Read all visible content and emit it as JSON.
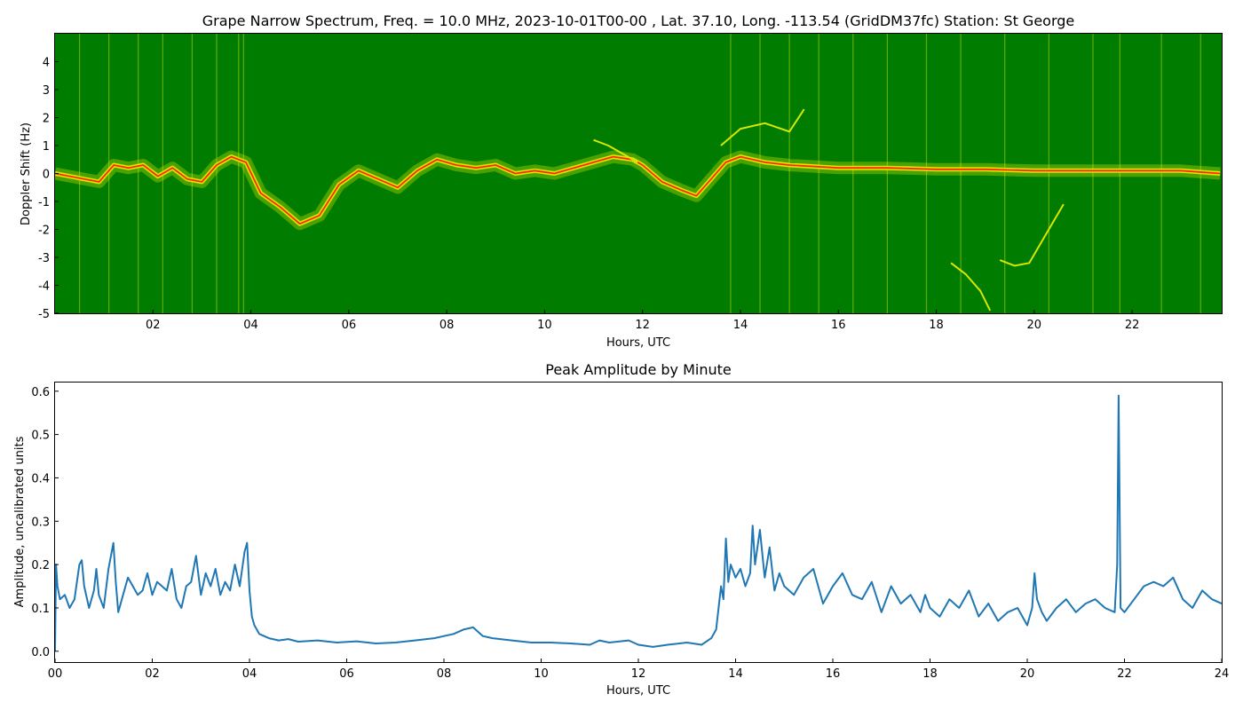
{
  "chart_data": [
    {
      "type": "heatmap",
      "title": "Grape Narrow Spectrum, Freq. = 10.0 MHz, 2023-10-01T00-00 , Lat.  37.10, Long. -113.54 (GridDM37fc) Station: St George",
      "xlabel": "Hours, UTC",
      "ylabel": "Doppler Shift (Hz)",
      "xlim": [
        0,
        23.83
      ],
      "ylim": [
        -5,
        5
      ],
      "x_ticks": [
        2,
        4,
        6,
        8,
        10,
        12,
        14,
        16,
        18,
        20,
        22
      ],
      "x_tick_labels": [
        "02",
        "04",
        "06",
        "08",
        "10",
        "12",
        "14",
        "16",
        "18",
        "20",
        "22"
      ],
      "y_ticks": [
        -5,
        -4,
        -3,
        -2,
        -1,
        0,
        1,
        2,
        3,
        4
      ],
      "y_tick_labels": [
        "-5",
        "-4",
        "-3",
        "-2",
        "-1",
        "0",
        "1",
        "2",
        "3",
        "4"
      ],
      "colors": {
        "background": "#007c00",
        "mid": "#d8e800",
        "peak": "#ff2a00"
      },
      "doppler_trace": {
        "hours": [
          0.0,
          0.3,
          0.6,
          0.9,
          1.2,
          1.5,
          1.8,
          2.1,
          2.4,
          2.7,
          3.0,
          3.3,
          3.6,
          3.9,
          4.2,
          4.6,
          5.0,
          5.4,
          5.8,
          6.2,
          6.6,
          7.0,
          7.4,
          7.8,
          8.2,
          8.6,
          9.0,
          9.4,
          9.8,
          10.2,
          10.6,
          11.0,
          11.4,
          11.8,
          12.0,
          12.4,
          12.8,
          13.1,
          13.4,
          13.7,
          14.0,
          14.5,
          15.0,
          16.0,
          17.0,
          18.0,
          19.0,
          20.0,
          21.0,
          22.0,
          23.0,
          23.8
        ],
        "shift_hz": [
          0.0,
          -0.1,
          -0.2,
          -0.3,
          0.3,
          0.2,
          0.3,
          -0.1,
          0.2,
          -0.2,
          -0.3,
          0.3,
          0.6,
          0.4,
          -0.7,
          -1.2,
          -1.8,
          -1.5,
          -0.4,
          0.1,
          -0.2,
          -0.5,
          0.1,
          0.5,
          0.3,
          0.2,
          0.3,
          0.0,
          0.1,
          0.0,
          0.2,
          0.4,
          0.6,
          0.5,
          0.3,
          -0.3,
          -0.6,
          -0.8,
          -0.2,
          0.4,
          0.6,
          0.4,
          0.3,
          0.2,
          0.2,
          0.15,
          0.15,
          0.1,
          0.1,
          0.1,
          0.1,
          0.0
        ]
      },
      "secondary_traces": [
        {
          "hours": [
            11.0,
            11.3,
            11.6,
            11.9
          ],
          "shift_hz": [
            1.2,
            1.0,
            0.7,
            0.4
          ]
        },
        {
          "hours": [
            13.6,
            14.0,
            14.5,
            15.0,
            15.3
          ],
          "shift_hz": [
            1.0,
            1.6,
            1.8,
            1.5,
            2.3
          ]
        },
        {
          "hours": [
            18.3,
            18.6,
            18.9,
            19.1
          ],
          "shift_hz": [
            -3.2,
            -3.6,
            -4.2,
            -4.9
          ]
        },
        {
          "hours": [
            19.3,
            19.6,
            19.9,
            20.2,
            20.6
          ],
          "shift_hz": [
            -3.1,
            -3.3,
            -3.2,
            -2.3,
            -1.1
          ]
        }
      ],
      "bright_columns_hours": [
        0.5,
        1.1,
        1.7,
        2.2,
        2.8,
        3.3,
        3.75,
        3.85,
        13.8,
        14.4,
        15.0,
        15.6,
        16.3,
        17.0,
        17.8,
        18.5,
        19.4,
        20.3,
        21.2,
        21.75,
        22.6,
        23.4
      ]
    },
    {
      "type": "line",
      "title": "Peak Amplitude by Minute",
      "xlabel": "Hours, UTC",
      "ylabel": "Amplitude, uncalibrated units",
      "xlim": [
        0,
        24
      ],
      "ylim": [
        -0.025,
        0.62
      ],
      "x_ticks": [
        0,
        2,
        4,
        6,
        8,
        10,
        12,
        14,
        16,
        18,
        20,
        22,
        24
      ],
      "x_tick_labels": [
        "00",
        "02",
        "04",
        "06",
        "08",
        "10",
        "12",
        "14",
        "16",
        "18",
        "20",
        "22",
        "24"
      ],
      "y_ticks": [
        0.0,
        0.1,
        0.2,
        0.3,
        0.4,
        0.5,
        0.6
      ],
      "y_tick_labels": [
        "0.0",
        "0.1",
        "0.2",
        "0.3",
        "0.4",
        "0.5",
        "0.6"
      ],
      "grid": false,
      "line_color": "#1f77b4",
      "x": [
        0.0,
        0.02,
        0.05,
        0.1,
        0.2,
        0.3,
        0.4,
        0.5,
        0.55,
        0.6,
        0.7,
        0.8,
        0.85,
        0.9,
        1.0,
        1.1,
        1.2,
        1.25,
        1.3,
        1.4,
        1.5,
        1.6,
        1.7,
        1.8,
        1.9,
        2.0,
        2.1,
        2.2,
        2.3,
        2.4,
        2.5,
        2.6,
        2.7,
        2.8,
        2.9,
        3.0,
        3.1,
        3.2,
        3.3,
        3.4,
        3.5,
        3.6,
        3.7,
        3.8,
        3.9,
        3.95,
        4.0,
        4.05,
        4.1,
        4.2,
        4.4,
        4.6,
        4.8,
        5.0,
        5.4,
        5.8,
        6.2,
        6.6,
        7.0,
        7.4,
        7.8,
        8.0,
        8.2,
        8.4,
        8.6,
        8.8,
        9.0,
        9.4,
        9.8,
        10.2,
        10.6,
        11.0,
        11.2,
        11.4,
        11.8,
        12.0,
        12.3,
        12.6,
        13.0,
        13.3,
        13.5,
        13.6,
        13.7,
        13.75,
        13.8,
        13.85,
        13.9,
        14.0,
        14.1,
        14.2,
        14.3,
        14.35,
        14.4,
        14.5,
        14.6,
        14.7,
        14.8,
        14.9,
        15.0,
        15.2,
        15.4,
        15.6,
        15.8,
        16.0,
        16.2,
        16.4,
        16.6,
        16.8,
        17.0,
        17.2,
        17.4,
        17.6,
        17.8,
        17.9,
        18.0,
        18.2,
        18.4,
        18.6,
        18.8,
        19.0,
        19.2,
        19.4,
        19.6,
        19.8,
        20.0,
        20.1,
        20.15,
        20.2,
        20.3,
        20.4,
        20.6,
        20.8,
        21.0,
        21.2,
        21.4,
        21.6,
        21.8,
        21.85,
        21.88,
        21.92,
        22.0,
        22.2,
        22.4,
        22.6,
        22.8,
        23.0,
        23.2,
        23.4,
        23.6,
        23.8,
        24.0
      ],
      "y": [
        0.0,
        0.2,
        0.15,
        0.12,
        0.13,
        0.1,
        0.12,
        0.2,
        0.21,
        0.15,
        0.1,
        0.14,
        0.19,
        0.13,
        0.1,
        0.19,
        0.25,
        0.16,
        0.09,
        0.13,
        0.17,
        0.15,
        0.13,
        0.14,
        0.18,
        0.13,
        0.16,
        0.15,
        0.14,
        0.19,
        0.12,
        0.1,
        0.15,
        0.16,
        0.22,
        0.13,
        0.18,
        0.15,
        0.19,
        0.13,
        0.16,
        0.14,
        0.2,
        0.15,
        0.23,
        0.25,
        0.14,
        0.08,
        0.06,
        0.04,
        0.03,
        0.025,
        0.028,
        0.022,
        0.025,
        0.02,
        0.023,
        0.018,
        0.02,
        0.025,
        0.03,
        0.035,
        0.04,
        0.05,
        0.055,
        0.035,
        0.03,
        0.025,
        0.02,
        0.02,
        0.018,
        0.015,
        0.025,
        0.02,
        0.025,
        0.015,
        0.01,
        0.015,
        0.02,
        0.015,
        0.03,
        0.05,
        0.15,
        0.12,
        0.26,
        0.16,
        0.2,
        0.17,
        0.19,
        0.15,
        0.18,
        0.29,
        0.2,
        0.28,
        0.17,
        0.24,
        0.14,
        0.18,
        0.15,
        0.13,
        0.17,
        0.19,
        0.11,
        0.15,
        0.18,
        0.13,
        0.12,
        0.16,
        0.09,
        0.15,
        0.11,
        0.13,
        0.09,
        0.13,
        0.1,
        0.08,
        0.12,
        0.1,
        0.14,
        0.08,
        0.11,
        0.07,
        0.09,
        0.1,
        0.06,
        0.1,
        0.18,
        0.12,
        0.09,
        0.07,
        0.1,
        0.12,
        0.09,
        0.11,
        0.12,
        0.1,
        0.09,
        0.2,
        0.59,
        0.1,
        0.09,
        0.12,
        0.15,
        0.16,
        0.15,
        0.17,
        0.12,
        0.1,
        0.14,
        0.12,
        0.11
      ]
    }
  ]
}
